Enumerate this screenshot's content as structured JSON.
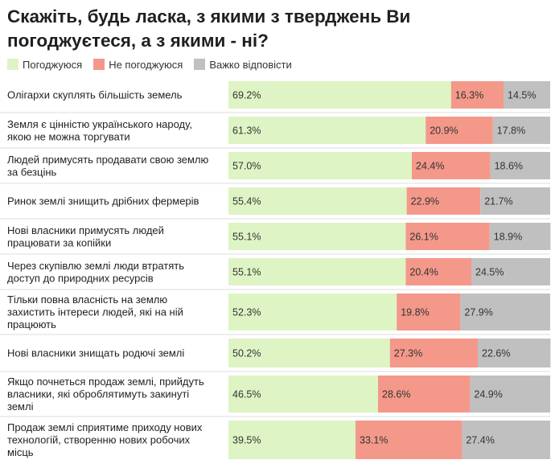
{
  "title": "Скажіть, будь ласка, з якими з тверджень Ви погоджуєтеся, а з якими - ні?",
  "colors": {
    "agree": "#def4c4",
    "disagree": "#f4988a",
    "hard": "#c0c0c0",
    "divider": "#dddddd"
  },
  "legend": [
    {
      "label": "Погоджуюся",
      "color_key": "agree"
    },
    {
      "label": "Не погоджуюся",
      "color_key": "disagree"
    },
    {
      "label": "Важко відповісти",
      "color_key": "hard"
    }
  ],
  "chart_data": {
    "type": "bar",
    "orientation": "horizontal",
    "stacked": true,
    "value_suffix": "%",
    "categories": [
      [
        "Олігархи скуплять більшість земель"
      ],
      [
        "Земля є цінністю українського народу,",
        "якою не можна торгувати"
      ],
      [
        "Людей примусять продавати свою землю",
        "за безцінь"
      ],
      [
        "Ринок землі знищить дрібних фермерів"
      ],
      [
        "Нові власники примусять людей",
        "працювати за копійки"
      ],
      [
        "Через скупівлю землі люди втратять",
        "доступ до природних ресурсів"
      ],
      [
        "Тільки повна власність на землю",
        "захистить інтереси людей, які на ній",
        "працюють"
      ],
      [
        "Нові власники знищать родючі землі"
      ],
      [
        "Якщо почнеться продаж землі, прийдуть",
        "власники, які оброблятимуть закинуті",
        "землі"
      ],
      [
        "Продаж землі сприятиме приходу нових",
        "технологій, створенню нових робочих",
        "місць"
      ]
    ],
    "series": [
      {
        "name": "Погоджуюся",
        "color_key": "agree",
        "values": [
          69.2,
          61.3,
          57.0,
          55.4,
          55.1,
          55.1,
          52.3,
          50.2,
          46.5,
          39.5
        ]
      },
      {
        "name": "Не погоджуюся",
        "color_key": "disagree",
        "values": [
          16.3,
          20.9,
          24.4,
          22.9,
          26.1,
          20.4,
          19.8,
          27.3,
          28.6,
          33.1
        ]
      },
      {
        "name": "Важко відповісти",
        "color_key": "hard",
        "values": [
          14.5,
          17.8,
          18.6,
          21.7,
          18.9,
          24.5,
          27.9,
          22.6,
          24.9,
          27.4
        ]
      }
    ],
    "xlim": [
      0,
      100
    ],
    "legend_position": "top-left",
    "grid": false
  }
}
